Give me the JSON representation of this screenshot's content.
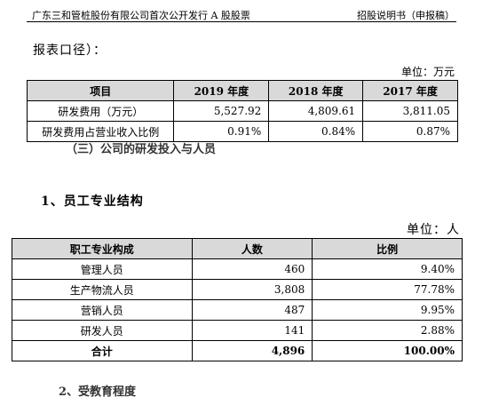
{
  "header": {
    "left": "广东三和管桩股份有限公司首次公开发行 A 股股票",
    "right": "招股说明书（申报稿）"
  },
  "paragraph_fragment": "报表口径）：",
  "rd_table": {
    "unit": "单位：万元",
    "headers": [
      "项目",
      "2019 年度",
      "2018 年度",
      "2017 年度"
    ],
    "rows": [
      [
        "研发费用（万元）",
        "5,527.92",
        "4,809.61",
        "3,811.05"
      ],
      [
        "研发费用占营业收入比例",
        "0.91%",
        "0.84%",
        "0.87%"
      ]
    ]
  },
  "cut_heading": "（三）公司的研发投入与人员",
  "section_heading": "1、员工专业结构",
  "staff_table": {
    "unit": "单位：人",
    "headers": [
      "职工专业构成",
      "人数",
      "比例"
    ],
    "rows": [
      [
        "管理人员",
        "460",
        "9.40%"
      ],
      [
        "生产物流人员",
        "3,808",
        "77.78%"
      ],
      [
        "营销人员",
        "487",
        "9.95%"
      ],
      [
        "研发人员",
        "141",
        "2.88%"
      ]
    ],
    "total": [
      "合计",
      "4,896",
      "100.00%"
    ]
  },
  "bottom_cut": "2、受教育程度"
}
